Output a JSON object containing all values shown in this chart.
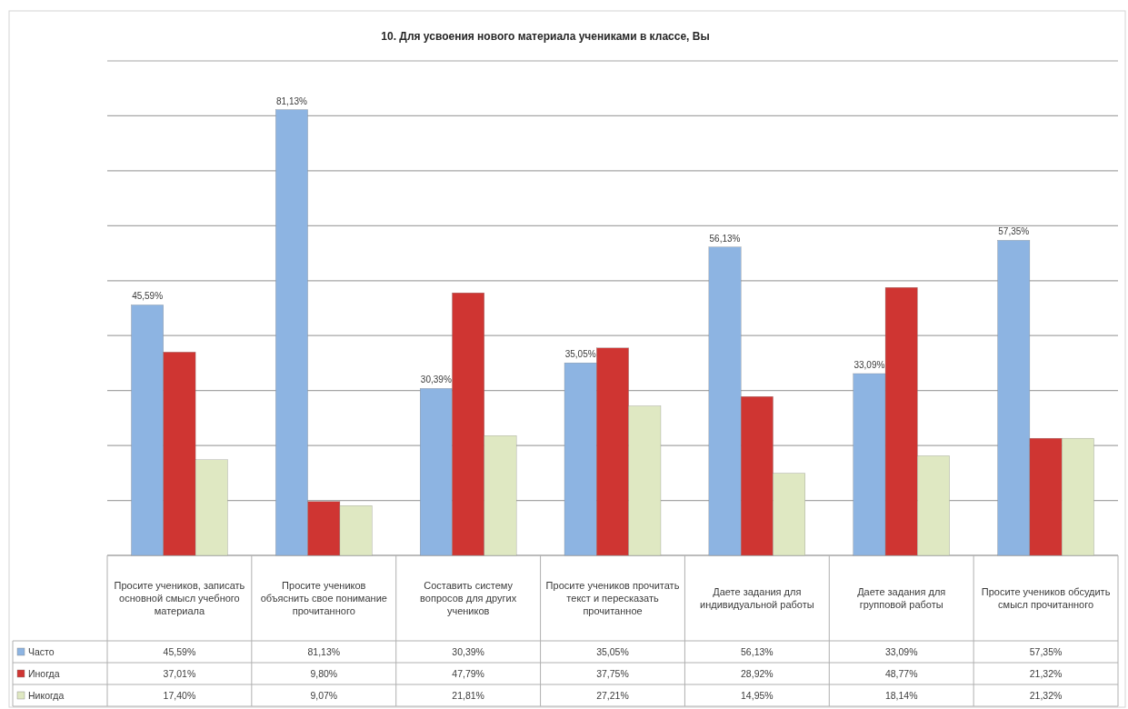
{
  "chart_data": {
    "type": "bar",
    "title": "10. Для усвоения нового материала учениками в классе, Вы",
    "categories": [
      "Просите учеников, записать основной смысл учебного материала",
      "Просите учеников объяснить свое понимание прочитанного",
      "Составить систему вопросов для других учеников",
      "Просите учеников прочитать текст и пересказать прочитанное",
      "Даете задания для индивидуальной работы",
      "Даете задания для групповой работы",
      "Просите учеников обсудить смысл прочитанного"
    ],
    "series": [
      {
        "name": "Часто",
        "color": "#8db4e2",
        "values": [
          45.59,
          81.13,
          30.39,
          35.05,
          56.13,
          33.09,
          57.35
        ],
        "value_labels": [
          "45,59%",
          "81,13%",
          "30,39%",
          "35,05%",
          "56,13%",
          "33,09%",
          "57,35%"
        ],
        "data_labels": true
      },
      {
        "name": "Иногда",
        "color": "#cf3532",
        "values": [
          37.01,
          9.8,
          47.79,
          37.75,
          28.92,
          48.77,
          21.32
        ],
        "value_labels": [
          "37,01%",
          "9,80%",
          "47,79%",
          "37,75%",
          "28,92%",
          "48,77%",
          "21,32%"
        ]
      },
      {
        "name": "Никогда",
        "color": "#dfe8c2",
        "values": [
          17.4,
          9.07,
          21.81,
          27.21,
          14.95,
          18.14,
          21.32
        ],
        "value_labels": [
          "17,40%",
          "9,07%",
          "21,81%",
          "27,21%",
          "14,95%",
          "18,14%",
          "21,32%"
        ]
      }
    ],
    "ylim": [
      0,
      90
    ],
    "yticks": [
      {
        "value": 0,
        "label": null
      },
      {
        "value": 10,
        "label": null
      },
      {
        "value": 20,
        "label": null
      },
      {
        "value": 30,
        "label": null
      },
      {
        "value": 40,
        "label": null
      },
      {
        "value": 50,
        "label": null
      },
      {
        "value": 60,
        "label": null
      },
      {
        "value": 70,
        "label": null
      },
      {
        "value": 80,
        "label": null
      },
      {
        "value": 90,
        "label": null
      }
    ],
    "grid": "y",
    "legend": "bottom left",
    "tick_labels": "x"
  }
}
